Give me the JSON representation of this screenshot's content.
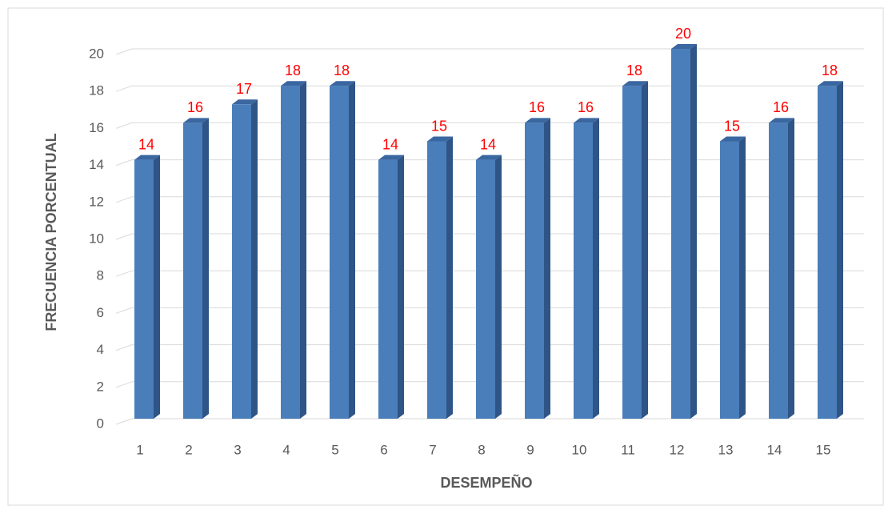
{
  "chart_data": {
    "type": "bar",
    "categories": [
      "1",
      "2",
      "3",
      "4",
      "5",
      "6",
      "7",
      "8",
      "9",
      "10",
      "11",
      "12",
      "13",
      "14",
      "15"
    ],
    "values": [
      14,
      16,
      17,
      18,
      18,
      14,
      15,
      14,
      16,
      16,
      18,
      20,
      15,
      16,
      18
    ],
    "color": "#4a7ebb",
    "xlabel": "DESEMPEÑO",
    "ylabel": "FRECUENCIA PORCENTUAL",
    "ylim": [
      0,
      20
    ],
    "yticks": [
      0,
      2,
      4,
      6,
      8,
      10,
      12,
      14,
      16,
      18,
      20
    ],
    "grid": true
  }
}
